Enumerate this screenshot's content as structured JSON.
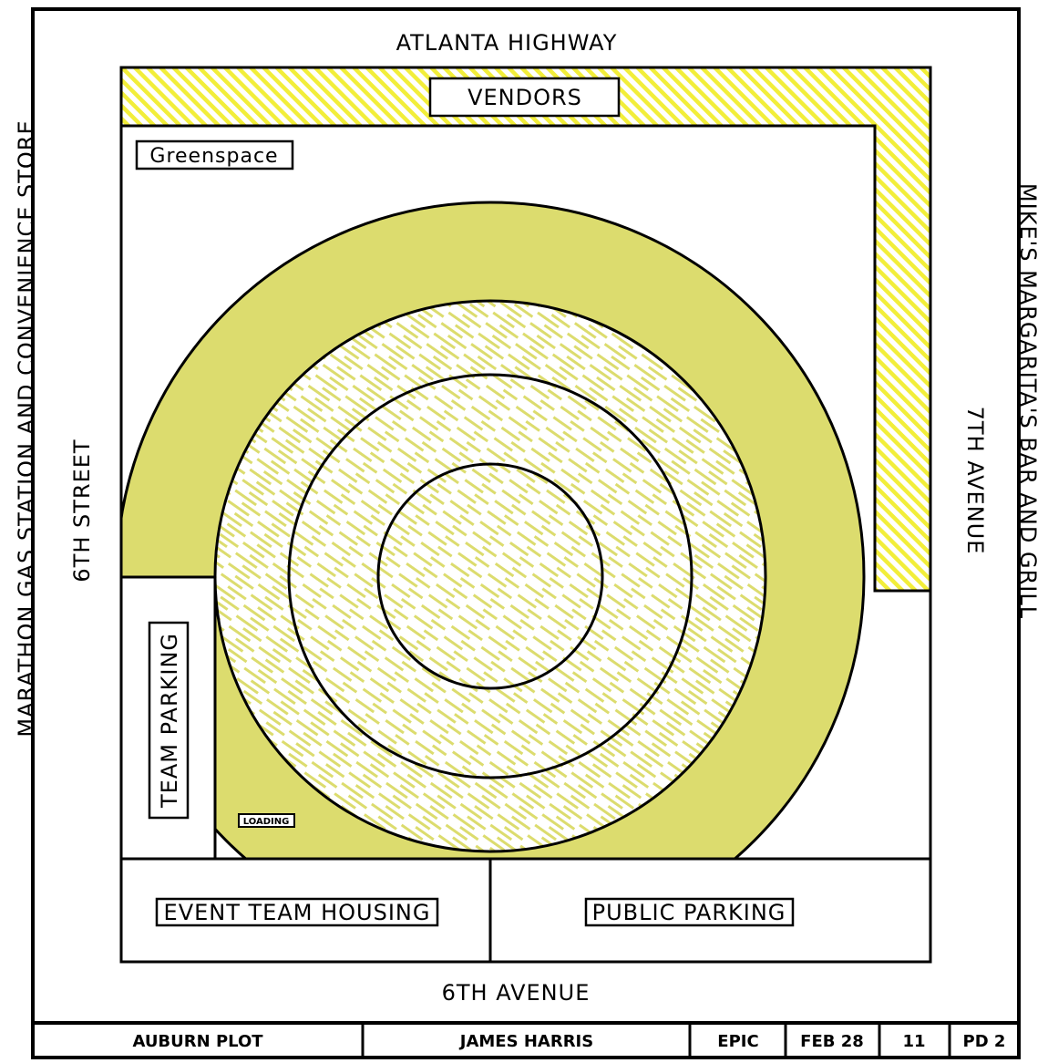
{
  "streets": {
    "north": "ATLANTA HIGHWAY",
    "south": "6TH AVENUE",
    "west": "6TH STREET",
    "east": "7TH AVENUE"
  },
  "neighbors": {
    "west": "MARATHON GAS STATION AND CONVENIENCE STORE",
    "east": "MIKE'S MARGARITA'S BAR AND GRILL"
  },
  "zones": {
    "vendors": "VENDORS",
    "greenspace": "Greenspace",
    "team_parking": "TEAM PARKING",
    "loading": "LOADING",
    "event_team_housing": "EVENT TEAM HOUSING",
    "public_parking": "PUBLIC PARKING"
  },
  "title_block": {
    "plot": "AUBURN PLOT",
    "author": "JAMES HARRIS",
    "project": "EPIC",
    "date": "FEB 28",
    "number": "11",
    "period": "PD 2"
  },
  "colors": {
    "fill": "#dcdc6e",
    "hatch": "#f2ee3a",
    "stroke": "#000000"
  }
}
